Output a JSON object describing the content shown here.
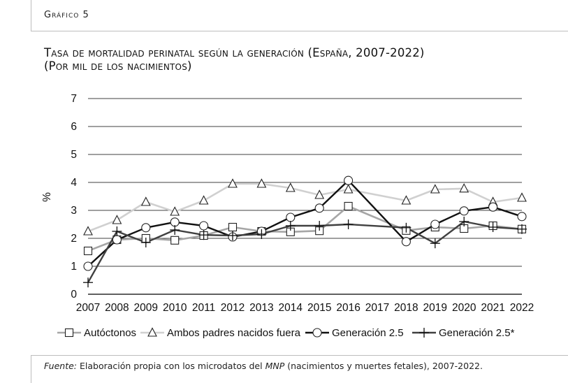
{
  "header": {
    "label": "Gráfico 5"
  },
  "title_lines": [
    "Tasa de mortalidad perinatal según la generación (España, 2007-2022)",
    "(Por mil de los nacimientos)"
  ],
  "source": {
    "prefix": "Fuente:",
    "text1": " Elaboración propia con los microdatos del ",
    "em": "MNP",
    "text2": " (nacimientos y muertes fetales), 2007-2022."
  },
  "colors": {
    "autoctonos": "#a6a6a6",
    "ambos": "#d0d0d0",
    "gen25": "#111111",
    "gen25s": "#404040",
    "grid": "#000000"
  },
  "chart_data": {
    "type": "line",
    "title": "Tasa de mortalidad perinatal según la generación (España, 2007-2022)",
    "subtitle": "(Por mil de los nacimientos)",
    "ylabel": "%",
    "xlabel": "",
    "ylim": [
      0,
      7
    ],
    "yticks": [
      0,
      1,
      2,
      3,
      4,
      5,
      6,
      7
    ],
    "grid": "horizontal",
    "legend": "bottom",
    "categories": [
      "2007",
      "2008",
      "2009",
      "2010",
      "2011",
      "2012",
      "2013",
      "2014",
      "2015",
      "2016",
      "2017",
      "2018",
      "2019",
      "2020",
      "2021",
      "2022"
    ],
    "series": [
      {
        "name": "Autóctonos",
        "marker": "square",
        "key": "autoctonos",
        "values": [
          1.55,
          1.95,
          2.0,
          1.93,
          2.1,
          2.4,
          2.25,
          2.23,
          2.27,
          3.15,
          null,
          2.28,
          2.4,
          2.35,
          2.45,
          2.33
        ]
      },
      {
        "name": "Ambos padres nacidos fuera",
        "marker": "triangle",
        "key": "ambos",
        "values": [
          2.25,
          2.65,
          3.3,
          2.95,
          3.35,
          3.95,
          3.95,
          3.8,
          3.55,
          3.75,
          null,
          3.35,
          3.75,
          3.78,
          3.3,
          3.45
        ]
      },
      {
        "name": "Generación 2.5",
        "marker": "circle",
        "key": "gen25",
        "values": [
          1.0,
          1.95,
          2.38,
          2.58,
          2.45,
          2.05,
          2.25,
          2.75,
          3.08,
          4.07,
          null,
          1.88,
          2.5,
          2.98,
          3.12,
          2.78
        ]
      },
      {
        "name": "Generación 2.5*",
        "marker": "plus",
        "key": "gen25s",
        "values": [
          0.42,
          2.25,
          1.85,
          2.3,
          2.12,
          2.1,
          2.15,
          2.45,
          2.45,
          2.5,
          null,
          2.38,
          1.82,
          2.6,
          2.4,
          2.33
        ]
      }
    ]
  }
}
